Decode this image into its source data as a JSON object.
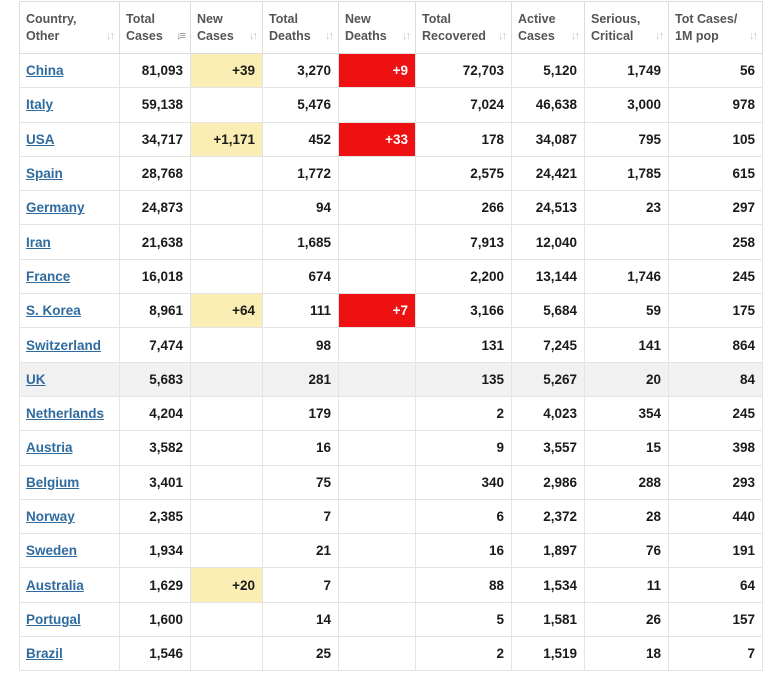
{
  "headers": [
    {
      "line1": "Country,",
      "line2": "Other"
    },
    {
      "line1": "Total",
      "line2": "Cases"
    },
    {
      "line1": "New",
      "line2": "Cases"
    },
    {
      "line1": "Total",
      "line2": "Deaths"
    },
    {
      "line1": "New",
      "line2": "Deaths"
    },
    {
      "line1": "Total",
      "line2": "Recovered"
    },
    {
      "line1": "Active",
      "line2": "Cases"
    },
    {
      "line1": "Serious,",
      "line2": "Critical"
    },
    {
      "line1": "Tot Cases/",
      "line2": "1M pop"
    }
  ],
  "sort_icon": "sort-arrows-icon",
  "colors": {
    "link": "#2f6b9f",
    "new_cases_highlight": "#fbeeb5",
    "new_deaths_highlight": "#ee1111",
    "alt_row": "#f1f1f1"
  },
  "rows": [
    {
      "country": "China",
      "total_cases": "81,093",
      "new_cases": "+39",
      "total_deaths": "3,270",
      "new_deaths": "+9",
      "total_recovered": "72,703",
      "active_cases": "5,120",
      "serious_critical": "1,749",
      "tot_cases_per_1m": "56"
    },
    {
      "country": "Italy",
      "total_cases": "59,138",
      "new_cases": "",
      "total_deaths": "5,476",
      "new_deaths": "",
      "total_recovered": "7,024",
      "active_cases": "46,638",
      "serious_critical": "3,000",
      "tot_cases_per_1m": "978"
    },
    {
      "country": "USA",
      "total_cases": "34,717",
      "new_cases": "+1,171",
      "total_deaths": "452",
      "new_deaths": "+33",
      "total_recovered": "178",
      "active_cases": "34,087",
      "serious_critical": "795",
      "tot_cases_per_1m": "105"
    },
    {
      "country": "Spain",
      "total_cases": "28,768",
      "new_cases": "",
      "total_deaths": "1,772",
      "new_deaths": "",
      "total_recovered": "2,575",
      "active_cases": "24,421",
      "serious_critical": "1,785",
      "tot_cases_per_1m": "615"
    },
    {
      "country": "Germany",
      "total_cases": "24,873",
      "new_cases": "",
      "total_deaths": "94",
      "new_deaths": "",
      "total_recovered": "266",
      "active_cases": "24,513",
      "serious_critical": "23",
      "tot_cases_per_1m": "297"
    },
    {
      "country": "Iran",
      "total_cases": "21,638",
      "new_cases": "",
      "total_deaths": "1,685",
      "new_deaths": "",
      "total_recovered": "7,913",
      "active_cases": "12,040",
      "serious_critical": "",
      "tot_cases_per_1m": "258"
    },
    {
      "country": "France",
      "total_cases": "16,018",
      "new_cases": "",
      "total_deaths": "674",
      "new_deaths": "",
      "total_recovered": "2,200",
      "active_cases": "13,144",
      "serious_critical": "1,746",
      "tot_cases_per_1m": "245"
    },
    {
      "country": "S. Korea",
      "total_cases": "8,961",
      "new_cases": "+64",
      "total_deaths": "111",
      "new_deaths": "+7",
      "total_recovered": "3,166",
      "active_cases": "5,684",
      "serious_critical": "59",
      "tot_cases_per_1m": "175"
    },
    {
      "country": "Switzerland",
      "total_cases": "7,474",
      "new_cases": "",
      "total_deaths": "98",
      "new_deaths": "",
      "total_recovered": "131",
      "active_cases": "7,245",
      "serious_critical": "141",
      "tot_cases_per_1m": "864"
    },
    {
      "country": "UK",
      "total_cases": "5,683",
      "new_cases": "",
      "total_deaths": "281",
      "new_deaths": "",
      "total_recovered": "135",
      "active_cases": "5,267",
      "serious_critical": "20",
      "tot_cases_per_1m": "84"
    },
    {
      "country": "Netherlands",
      "total_cases": "4,204",
      "new_cases": "",
      "total_deaths": "179",
      "new_deaths": "",
      "total_recovered": "2",
      "active_cases": "4,023",
      "serious_critical": "354",
      "tot_cases_per_1m": "245"
    },
    {
      "country": "Austria",
      "total_cases": "3,582",
      "new_cases": "",
      "total_deaths": "16",
      "new_deaths": "",
      "total_recovered": "9",
      "active_cases": "3,557",
      "serious_critical": "15",
      "tot_cases_per_1m": "398"
    },
    {
      "country": "Belgium",
      "total_cases": "3,401",
      "new_cases": "",
      "total_deaths": "75",
      "new_deaths": "",
      "total_recovered": "340",
      "active_cases": "2,986",
      "serious_critical": "288",
      "tot_cases_per_1m": "293"
    },
    {
      "country": "Norway",
      "total_cases": "2,385",
      "new_cases": "",
      "total_deaths": "7",
      "new_deaths": "",
      "total_recovered": "6",
      "active_cases": "2,372",
      "serious_critical": "28",
      "tot_cases_per_1m": "440"
    },
    {
      "country": "Sweden",
      "total_cases": "1,934",
      "new_cases": "",
      "total_deaths": "21",
      "new_deaths": "",
      "total_recovered": "16",
      "active_cases": "1,897",
      "serious_critical": "76",
      "tot_cases_per_1m": "191"
    },
    {
      "country": "Australia",
      "total_cases": "1,629",
      "new_cases": "+20",
      "total_deaths": "7",
      "new_deaths": "",
      "total_recovered": "88",
      "active_cases": "1,534",
      "serious_critical": "11",
      "tot_cases_per_1m": "64"
    },
    {
      "country": "Portugal",
      "total_cases": "1,600",
      "new_cases": "",
      "total_deaths": "14",
      "new_deaths": "",
      "total_recovered": "5",
      "active_cases": "1,581",
      "serious_critical": "26",
      "tot_cases_per_1m": "157"
    },
    {
      "country": "Brazil",
      "total_cases": "1,546",
      "new_cases": "",
      "total_deaths": "25",
      "new_deaths": "",
      "total_recovered": "2",
      "active_cases": "1,519",
      "serious_critical": "18",
      "tot_cases_per_1m": "7"
    }
  ]
}
